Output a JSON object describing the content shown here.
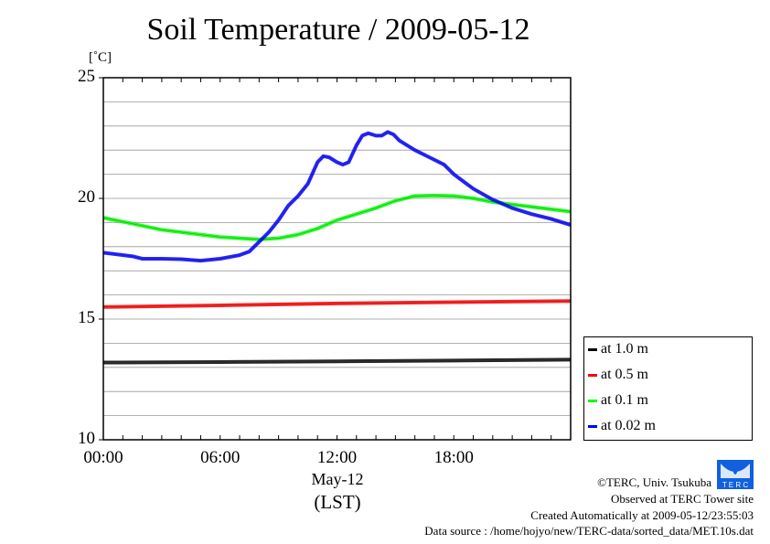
{
  "chart_data": {
    "type": "line",
    "title": "Soil Temperature / 2009-05-12",
    "ylabel": "[˚C]",
    "xlabel": "(LST)",
    "date_label": "May-12",
    "ylim": [
      10,
      25
    ],
    "xlim": [
      0,
      24
    ],
    "yticks": [
      {
        "v": 25,
        "label": "25"
      },
      {
        "v": 20,
        "label": "20"
      },
      {
        "v": 15,
        "label": "15"
      },
      {
        "v": 10,
        "label": "10"
      }
    ],
    "xticks": [
      {
        "v": 0,
        "label": "00:00"
      },
      {
        "v": 6,
        "label": "06:00"
      },
      {
        "v": 12,
        "label": "12:00"
      },
      {
        "v": 18,
        "label": "18:00"
      }
    ],
    "grid": true,
    "legend_position": "right-bottom",
    "series": [
      {
        "name": "at 1.0 m",
        "color": "#000000",
        "x": [
          0,
          6,
          12,
          18,
          24
        ],
        "y": [
          13.2,
          13.22,
          13.25,
          13.28,
          13.32
        ]
      },
      {
        "name": "at 0.5 m",
        "color": "#ff0000",
        "x": [
          0,
          6,
          12,
          18,
          24
        ],
        "y": [
          15.5,
          15.57,
          15.65,
          15.7,
          15.75
        ]
      },
      {
        "name": "at 0.1 m",
        "color": "#00ff00",
        "x": [
          0,
          3,
          6,
          8,
          9,
          10,
          11,
          12,
          13,
          14,
          15,
          16,
          17,
          18,
          19,
          20,
          21,
          22,
          23,
          24
        ],
        "y": [
          19.2,
          18.7,
          18.4,
          18.3,
          18.35,
          18.5,
          18.75,
          19.1,
          19.35,
          19.6,
          19.9,
          20.1,
          20.12,
          20.1,
          20.0,
          19.85,
          19.75,
          19.65,
          19.55,
          19.45
        ]
      },
      {
        "name": "at 0.02 m",
        "color": "#0000ff",
        "x": [
          0,
          1,
          1.5,
          2,
          3,
          4,
          5,
          6,
          7,
          7.5,
          8,
          8.5,
          9,
          9.5,
          10,
          10.5,
          11,
          11.3,
          11.6,
          12,
          12.3,
          12.6,
          13,
          13.3,
          13.6,
          14,
          14.3,
          14.6,
          14.9,
          15.2,
          16,
          17,
          17.5,
          18,
          19,
          20,
          21,
          22,
          23,
          24
        ],
        "y": [
          17.75,
          17.65,
          17.6,
          17.5,
          17.5,
          17.48,
          17.42,
          17.5,
          17.65,
          17.8,
          18.2,
          18.6,
          19.1,
          19.7,
          20.1,
          20.6,
          21.5,
          21.75,
          21.7,
          21.5,
          21.4,
          21.5,
          22.2,
          22.6,
          22.7,
          22.6,
          22.6,
          22.75,
          22.65,
          22.4,
          22.0,
          21.6,
          21.4,
          21.0,
          20.4,
          19.95,
          19.6,
          19.35,
          19.15,
          18.9
        ]
      }
    ]
  },
  "credits": {
    "copyright": "©TERC, Univ. Tsukuba",
    "observed": "Observed at TERC Tower site",
    "created": "Created Automatically at 2009-05-12/23:55:03",
    "source": "Data source : /home/hojyo/new/TERC-data/sorted_data/MET.10s.dat",
    "logo_text": "TERC"
  }
}
